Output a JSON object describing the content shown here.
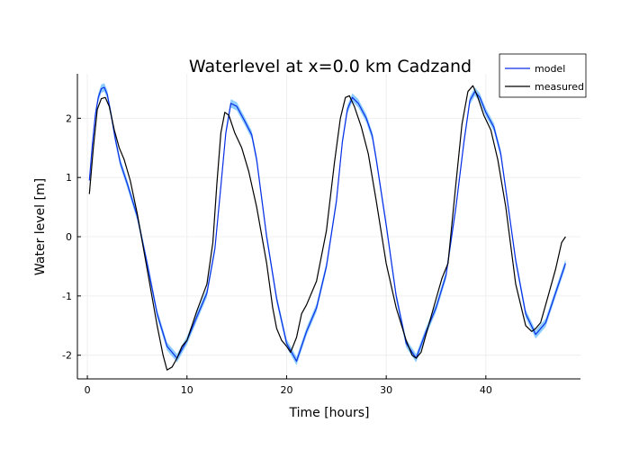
{
  "chart_data": {
    "type": "line",
    "title": "Waterlevel at x=0.0 km Cadzand",
    "xlabel": "Time [hours]",
    "ylabel": "Water level [m]",
    "xlim": [
      -1,
      49.5
    ],
    "ylim": [
      -2.4,
      2.75
    ],
    "x_ticks": [
      0,
      10,
      20,
      30,
      40
    ],
    "y_ticks": [
      -2,
      -1,
      0,
      1,
      2
    ],
    "grid": true,
    "legend_position": "top-right",
    "series": [
      {
        "name": "model",
        "color": "#0b2fe6",
        "band_color": "#79c4ff",
        "band_halfwidth": 0.07,
        "x": [
          0.2,
          0.5,
          0.8,
          1.1,
          1.4,
          1.7,
          2.0,
          2.4,
          2.8,
          3.3,
          4.0,
          5.0,
          6.0,
          7.0,
          8.0,
          9.0,
          10.0,
          11.0,
          12.0,
          12.8,
          13.4,
          13.9,
          14.4,
          15.0,
          15.8,
          16.5,
          17.0,
          18.0,
          19.0,
          20.0,
          21.0,
          22.0,
          23.0,
          24.0,
          25.0,
          25.6,
          26.1,
          26.6,
          27.2,
          28.0,
          28.6,
          29.0,
          30.0,
          31.0,
          32.0,
          33.0,
          34.0,
          35.0,
          36.0,
          37.0,
          37.8,
          38.4,
          38.9,
          39.4,
          40.0,
          40.8,
          41.5,
          42.0,
          43.0,
          44.0,
          45.0,
          46.0,
          47.0,
          48.0
        ],
        "y": [
          0.95,
          1.55,
          2.05,
          2.35,
          2.5,
          2.52,
          2.4,
          2.05,
          1.65,
          1.25,
          0.9,
          0.35,
          -0.45,
          -1.3,
          -1.85,
          -2.05,
          -1.75,
          -1.35,
          -0.95,
          -0.2,
          0.85,
          1.75,
          2.25,
          2.2,
          1.95,
          1.72,
          1.3,
          0.0,
          -1.05,
          -1.8,
          -2.1,
          -1.6,
          -1.2,
          -0.5,
          0.6,
          1.6,
          2.15,
          2.35,
          2.25,
          2.0,
          1.7,
          1.3,
          0.2,
          -1.0,
          -1.8,
          -2.05,
          -1.6,
          -1.2,
          -0.65,
          0.5,
          1.6,
          2.3,
          2.45,
          2.35,
          2.1,
          1.85,
          1.4,
          0.8,
          -0.4,
          -1.3,
          -1.65,
          -1.45,
          -0.95,
          -0.45
        ]
      },
      {
        "name": "measured",
        "color": "#000000",
        "x": [
          0.2,
          0.6,
          1.0,
          1.4,
          1.8,
          2.2,
          2.7,
          3.2,
          3.7,
          4.3,
          5.0,
          6.0,
          7.0,
          7.6,
          8.0,
          8.5,
          9.0,
          9.5,
          10.0,
          11.0,
          12.0,
          12.6,
          13.0,
          13.4,
          13.8,
          14.2,
          14.8,
          15.5,
          16.2,
          17.0,
          18.0,
          18.6,
          19.0,
          19.5,
          20.0,
          20.4,
          21.0,
          21.5,
          22.0,
          23.0,
          24.0,
          24.8,
          25.4,
          25.9,
          26.3,
          26.8,
          27.5,
          28.2,
          29.0,
          30.0,
          31.0,
          32.0,
          32.6,
          33.0,
          33.5,
          34.0,
          35.0,
          35.6,
          36.2,
          37.0,
          37.6,
          38.2,
          38.7,
          39.2,
          39.8,
          40.5,
          41.2,
          42.0,
          43.0,
          44.0,
          44.6,
          45.0,
          45.5,
          46.0,
          47.0,
          47.6,
          48.0
        ],
        "y": [
          0.72,
          1.5,
          2.15,
          2.33,
          2.35,
          2.2,
          1.8,
          1.5,
          1.3,
          0.95,
          0.4,
          -0.55,
          -1.5,
          -2.0,
          -2.25,
          -2.2,
          -2.05,
          -1.85,
          -1.75,
          -1.25,
          -0.8,
          -0.1,
          0.9,
          1.75,
          2.1,
          2.05,
          1.75,
          1.5,
          1.1,
          0.5,
          -0.45,
          -1.2,
          -1.55,
          -1.75,
          -1.85,
          -1.95,
          -1.7,
          -1.3,
          -1.15,
          -0.75,
          0.1,
          1.25,
          2.0,
          2.35,
          2.38,
          2.2,
          1.85,
          1.4,
          0.6,
          -0.45,
          -1.2,
          -1.75,
          -2.0,
          -2.05,
          -1.95,
          -1.65,
          -1.05,
          -0.7,
          -0.45,
          0.9,
          1.9,
          2.45,
          2.55,
          2.35,
          2.05,
          1.8,
          1.3,
          0.5,
          -0.8,
          -1.5,
          -1.6,
          -1.55,
          -1.45,
          -1.15,
          -0.55,
          -0.1,
          0.0
        ]
      }
    ]
  }
}
